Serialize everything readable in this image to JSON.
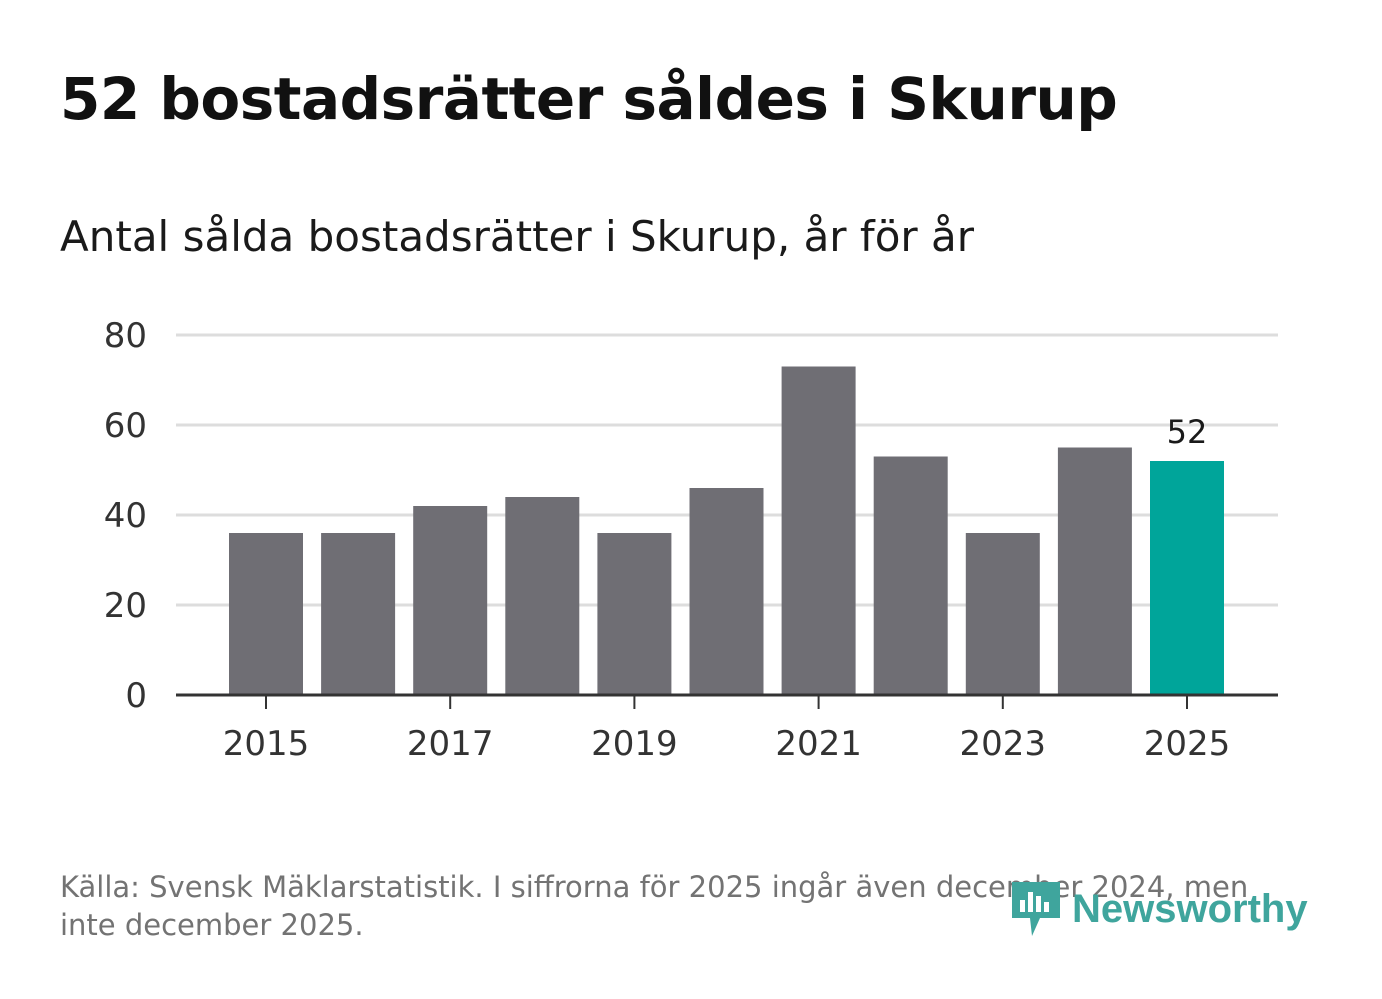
{
  "title": "52 bostadsrätter såldes i Skurup",
  "chart_data": {
    "type": "bar",
    "title": "52 bostadsrätter såldes i Skurup",
    "subtitle": "Antal sålda bostadsrätter i Skurup, år för år",
    "categories": [
      "2015",
      "2016",
      "2017",
      "2018",
      "2019",
      "2020",
      "2021",
      "2022",
      "2023",
      "2024",
      "2025"
    ],
    "values": [
      36,
      36,
      42,
      44,
      36,
      46,
      73,
      53,
      36,
      55,
      52
    ],
    "x_tick_labels": [
      "2015",
      "2017",
      "2019",
      "2021",
      "2023",
      "2025"
    ],
    "y_ticks": [
      0,
      20,
      40,
      60,
      80
    ],
    "ylim": [
      0,
      80
    ],
    "xlabel": "",
    "ylabel": "",
    "grid": true,
    "highlight": {
      "category": "2025",
      "label": "52"
    },
    "colors": {
      "bar": "#6f6e74",
      "highlight": "#00a59a",
      "grid": "#dddddd",
      "axis": "#333333"
    }
  },
  "source": "Källa: Svensk Mäklarstatistik. I siffrorna för 2025 ingår även december 2024, men inte december 2025.",
  "logo": {
    "text": "Newsworthy",
    "icon": "newsworthy-logo-icon",
    "color": "#3fa59d"
  }
}
